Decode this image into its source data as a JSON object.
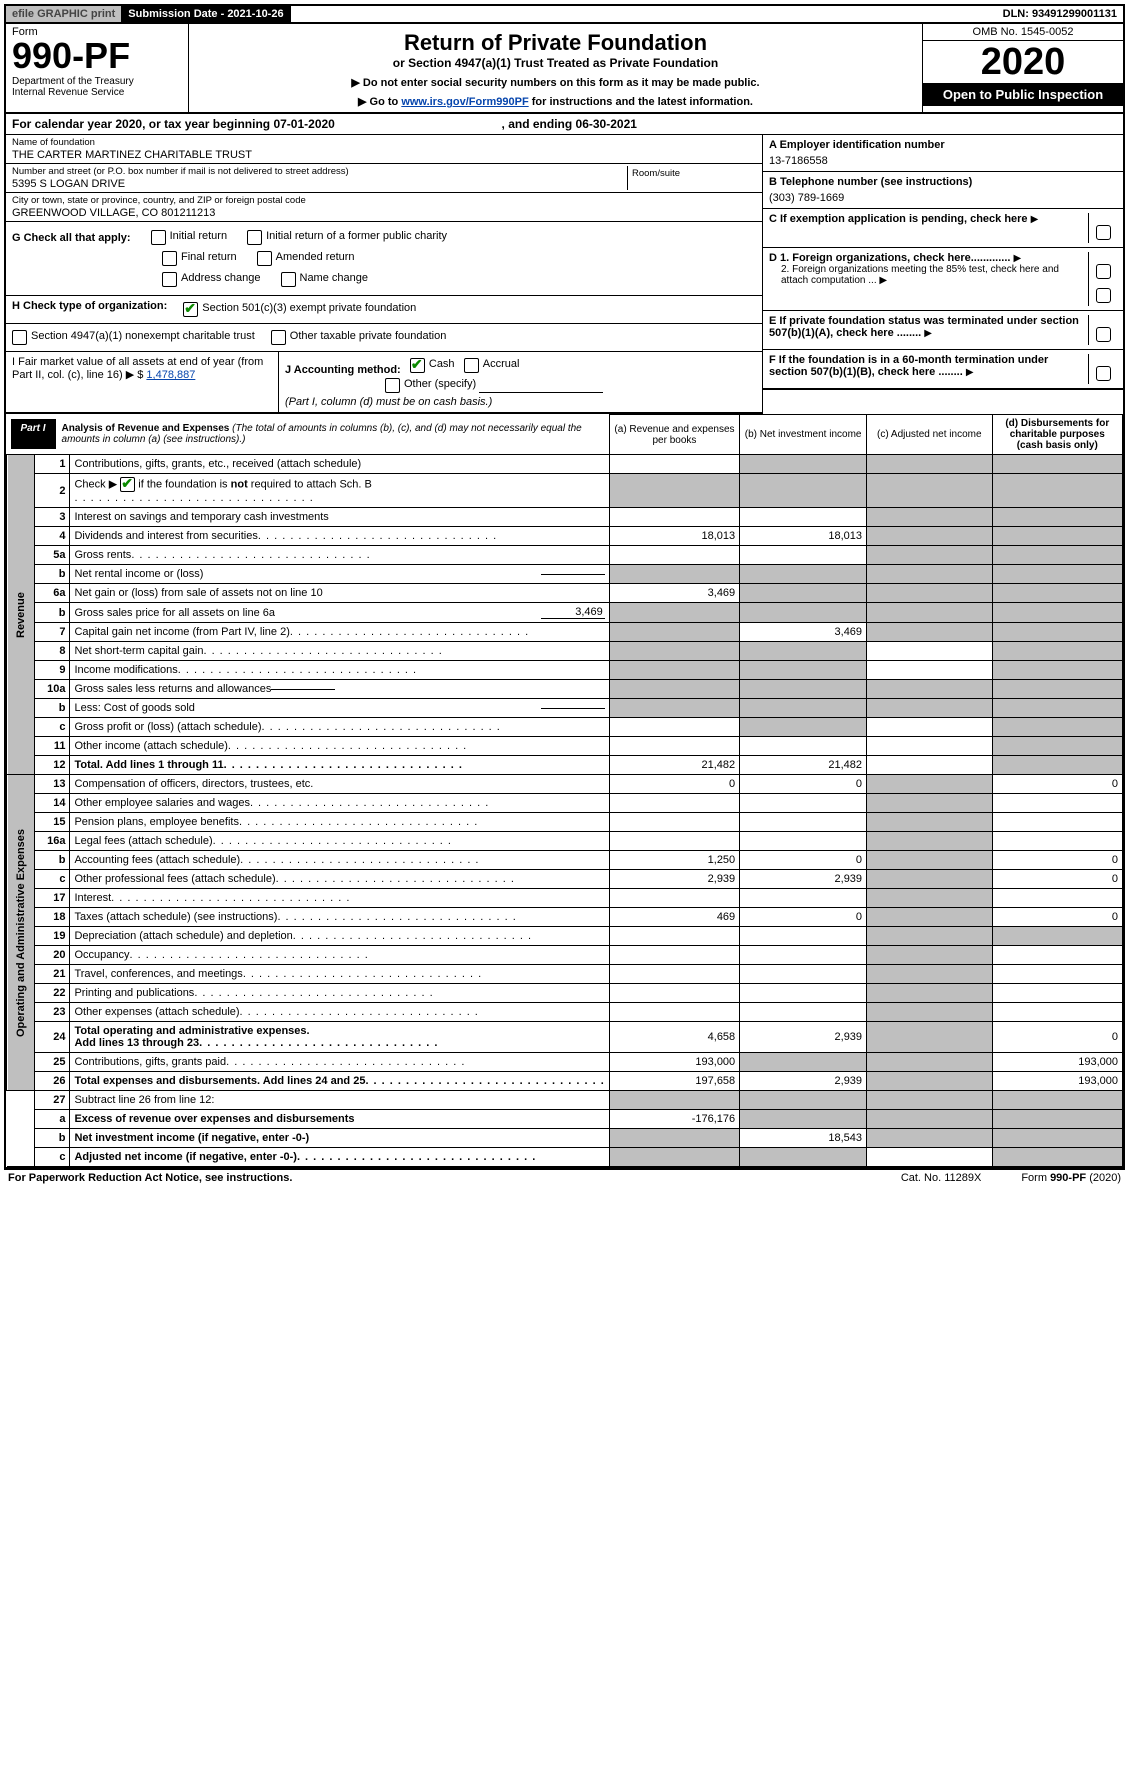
{
  "topbar": {
    "efile": "efile GRAPHIC print",
    "subdate": "Submission Date - 2021-10-26",
    "dln": "DLN: 93491299001131"
  },
  "header": {
    "formword": "Form",
    "formno": "990-PF",
    "dept": "Department of the Treasury\nInternal Revenue Service",
    "title": "Return of Private Foundation",
    "subtitle": "or Section 4947(a)(1) Trust Treated as Private Foundation",
    "notice1": "▶ Do not enter social security numbers on this form as it may be made public.",
    "notice2_pre": "▶ Go to ",
    "notice2_link": "www.irs.gov/Form990PF",
    "notice2_post": " for instructions and the latest information.",
    "omb": "OMB No. 1545-0052",
    "year": "2020",
    "open": "Open to Public Inspection"
  },
  "calrow": {
    "pre": "For calendar year 2020, or tax year beginning ",
    "begin": "07-01-2020",
    "mid": ", and ending ",
    "end": "06-30-2021"
  },
  "name": {
    "lbl": "Name of foundation",
    "val": "THE CARTER MARTINEZ CHARITABLE TRUST"
  },
  "addr": {
    "lbl": "Number and street (or P.O. box number if mail is not delivered to street address)",
    "val": "5395 S LOGAN DRIVE",
    "roomlbl": "Room/suite"
  },
  "city": {
    "lbl": "City or town, state or province, country, and ZIP or foreign postal code",
    "val": "GREENWOOD VILLAGE, CO  801211213"
  },
  "A": {
    "lbl": "A Employer identification number",
    "val": "13-7186558"
  },
  "B": {
    "lbl": "B Telephone number (see instructions)",
    "val": "(303) 789-1669"
  },
  "C": {
    "lbl": "C If exemption application is pending, check here"
  },
  "D": {
    "d1": "D 1. Foreign organizations, check here.............",
    "d2": "2. Foreign organizations meeting the 85% test, check here and attach computation ..."
  },
  "E": {
    "lbl": "E   If private foundation status was terminated under section 507(b)(1)(A), check here ........"
  },
  "F": {
    "lbl": "F   If the foundation is in a 60-month termination under section 507(b)(1)(B), check here ........"
  },
  "G": {
    "lbl": "G Check all that apply:",
    "opts": [
      "Initial return",
      "Initial return of a former public charity",
      "Final return",
      "Amended return",
      "Address change",
      "Name change"
    ]
  },
  "H": {
    "lbl": "H Check type of organization:",
    "o1": "Section 501(c)(3) exempt private foundation",
    "o2": "Section 4947(a)(1) nonexempt charitable trust",
    "o3": "Other taxable private foundation"
  },
  "I": {
    "lbl": "I Fair market value of all assets at end of year (from Part II, col. (c), line 16) ▶ $",
    "val": "1,478,887"
  },
  "J": {
    "lbl": "J Accounting method:",
    "o1": "Cash",
    "o2": "Accrual",
    "o3": "Other (specify)",
    "note": "(Part I, column (d) must be on cash basis.)"
  },
  "part1": {
    "label": "Part I",
    "title": "Analysis of Revenue and Expenses",
    "note": "(The total of amounts in columns (b), (c), and (d) may not necessarily equal the amounts in column (a) (see instructions).)",
    "colA": "(a)   Revenue and expenses per books",
    "colB": "(b)   Net investment income",
    "colC": "(c)   Adjusted net income",
    "colD": "(d)   Disbursements for charitable purposes (cash basis only)"
  },
  "sides": {
    "rev": "Revenue",
    "exp": "Operating and Administrative Expenses"
  },
  "rows": {
    "r1": {
      "n": "1",
      "d": "Contributions, gifts, grants, etc., received (attach schedule)",
      "nodots": true
    },
    "r2": {
      "n": "2",
      "d": "Check ▶",
      "d2": " if the foundation is not required to attach Sch. B"
    },
    "r3": {
      "n": "3",
      "d": "Interest on savings and temporary cash investments",
      "nodots": true
    },
    "r4": {
      "n": "4",
      "d": "Dividends and interest from securities",
      "a": "18,013",
      "b": "18,013"
    },
    "r5a": {
      "n": "5a",
      "d": "Gross rents"
    },
    "r5b": {
      "n": "b",
      "d": "Net rental income or (loss)",
      "box": true
    },
    "r6a": {
      "n": "6a",
      "d": "Net gain or (loss) from sale of assets not on line 10",
      "a": "3,469",
      "nodots": true
    },
    "r6b": {
      "n": "b",
      "d": "Gross sales price for all assets on line 6a",
      "boxval": "3,469"
    },
    "r7": {
      "n": "7",
      "d": "Capital gain net income (from Part IV, line 2)",
      "b": "3,469"
    },
    "r8": {
      "n": "8",
      "d": "Net short-term capital gain"
    },
    "r9": {
      "n": "9",
      "d": "Income modifications"
    },
    "r10a": {
      "n": "10a",
      "d": "Gross sales less returns and allowances",
      "box": true,
      "nodots": true
    },
    "r10b": {
      "n": "b",
      "d": "Less: Cost of goods sold",
      "box": true
    },
    "r10c": {
      "n": "c",
      "d": "Gross profit or (loss) (attach schedule)"
    },
    "r11": {
      "n": "11",
      "d": "Other income (attach schedule)"
    },
    "r12": {
      "n": "12",
      "d": "Total. Add lines 1 through 11",
      "a": "21,482",
      "b": "21,482",
      "bold": true
    },
    "r13": {
      "n": "13",
      "d": "Compensation of officers, directors, trustees, etc.",
      "a": "0",
      "b": "0",
      "dd": "0",
      "nodots": true
    },
    "r14": {
      "n": "14",
      "d": "Other employee salaries and wages"
    },
    "r15": {
      "n": "15",
      "d": "Pension plans, employee benefits"
    },
    "r16a": {
      "n": "16a",
      "d": "Legal fees (attach schedule)"
    },
    "r16b": {
      "n": "b",
      "d": "Accounting fees (attach schedule)",
      "a": "1,250",
      "b": "0",
      "dd": "0"
    },
    "r16c": {
      "n": "c",
      "d": "Other professional fees (attach schedule)",
      "a": "2,939",
      "b": "2,939",
      "dd": "0"
    },
    "r17": {
      "n": "17",
      "d": "Interest"
    },
    "r18": {
      "n": "18",
      "d": "Taxes (attach schedule) (see instructions)",
      "a": "469",
      "b": "0",
      "dd": "0"
    },
    "r19": {
      "n": "19",
      "d": "Depreciation (attach schedule) and depletion"
    },
    "r20": {
      "n": "20",
      "d": "Occupancy"
    },
    "r21": {
      "n": "21",
      "d": "Travel, conferences, and meetings"
    },
    "r22": {
      "n": "22",
      "d": "Printing and publications"
    },
    "r23": {
      "n": "23",
      "d": "Other expenses (attach schedule)"
    },
    "r24": {
      "n": "24",
      "d": "Total operating and administrative expenses.",
      "d2": "Add lines 13 through 23",
      "a": "4,658",
      "b": "2,939",
      "dd": "0",
      "bold": true
    },
    "r25": {
      "n": "25",
      "d": "Contributions, gifts, grants paid",
      "a": "193,000",
      "dd": "193,000"
    },
    "r26": {
      "n": "26",
      "d": "Total expenses and disbursements. Add lines 24 and 25",
      "a": "197,658",
      "b": "2,939",
      "dd": "193,000",
      "bold": true
    },
    "r27": {
      "n": "27",
      "d": "Subtract line 26 from line 12:",
      "nodots": true
    },
    "r27a": {
      "n": "a",
      "d": "Excess of revenue over expenses and disbursements",
      "a": "-176,176",
      "bold": true,
      "nodots": true
    },
    "r27b": {
      "n": "b",
      "d": "Net investment income (if negative, enter -0-)",
      "b": "18,543",
      "bold": true,
      "nodots": true
    },
    "r27c": {
      "n": "c",
      "d": "Adjusted net income (if negative, enter -0-)",
      "bold": true
    }
  },
  "footer": {
    "left": "For Paperwork Reduction Act Notice, see instructions.",
    "center": "Cat. No. 11289X",
    "right": "Form 990-PF (2020)"
  }
}
